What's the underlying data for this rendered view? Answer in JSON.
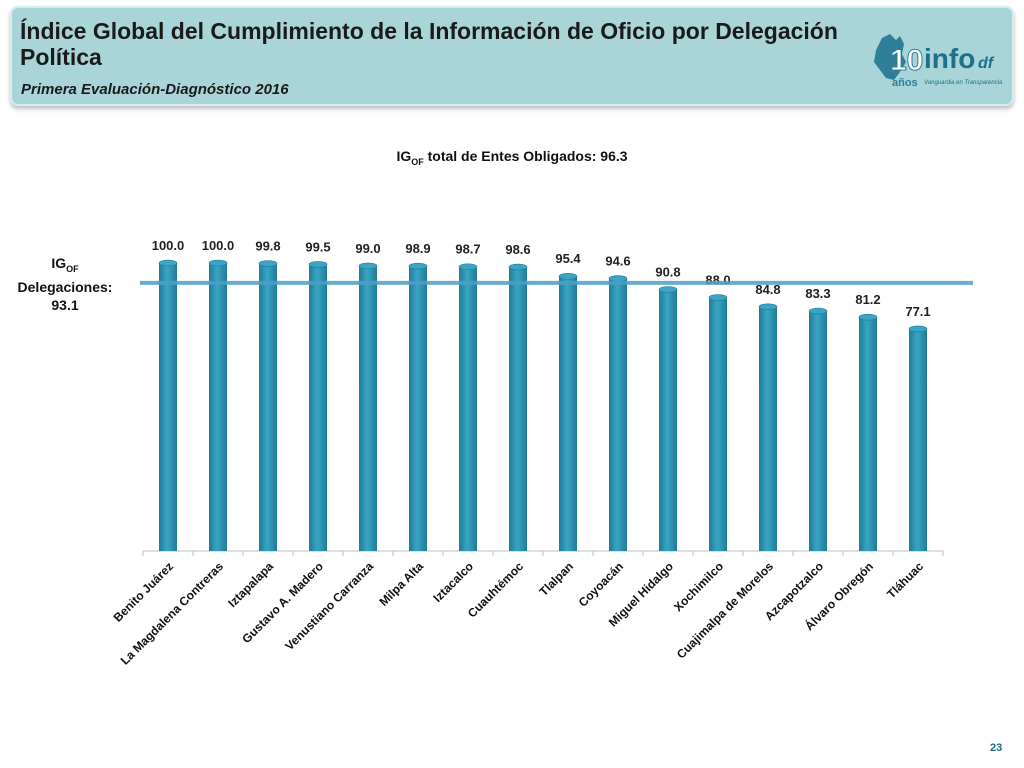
{
  "header": {
    "title": "Índice Global del Cumplimiento de la Información de Oficio por Delegación Política",
    "subtitle": "Primera Evaluación-Diagnóstico 2016",
    "logo": {
      "number": "10",
      "wordmark": "info",
      "suffix": "df",
      "years_label": "años",
      "tagline": "Vanguardia en Transparencia"
    }
  },
  "chart_title": {
    "prefix": "IG",
    "sub": "OF",
    "rest": " total de Entes Obligados: 96.3"
  },
  "average_label": {
    "prefix": "IG",
    "sub": "OF",
    "line2": "Delegaciones:",
    "line3": "93.1"
  },
  "page_number": "23",
  "colors": {
    "bar": "#3aa5c4",
    "bar_dark": "#1f7c98",
    "average_line": "#4f9ec7",
    "banner": "#a9d5d8"
  },
  "chart_data": {
    "type": "bar",
    "categories": [
      "Benito Juárez",
      "La Magdalena Contreras",
      "Iztapalapa",
      "Gustavo A. Madero",
      "Venustiano Carranza",
      "Milpa Alta",
      "Iztacalco",
      "Cuauhtémoc",
      "Tlalpan",
      "Coyoacán",
      "Miguel Hidalgo",
      "Xochimilco",
      "Cuajimalpa de Morelos",
      "Azcapotzalco",
      "Álvaro Obregón",
      "Tláhuac"
    ],
    "values": [
      100.0,
      100.0,
      99.8,
      99.5,
      99.0,
      98.9,
      98.7,
      98.6,
      95.4,
      94.6,
      90.8,
      88.0,
      84.8,
      83.3,
      81.2,
      77.1
    ],
    "value_labels": [
      "100.0",
      "100.0",
      "99.8",
      "99.5",
      "99.0",
      "98.9",
      "98.7",
      "98.6",
      "95.4",
      "94.6",
      "90.8",
      "88.0",
      "84.8",
      "83.3",
      "81.2",
      "77.1"
    ],
    "average": 93.1,
    "ylim": [
      0,
      107
    ],
    "grid": false,
    "xlabel": "",
    "ylabel": ""
  }
}
